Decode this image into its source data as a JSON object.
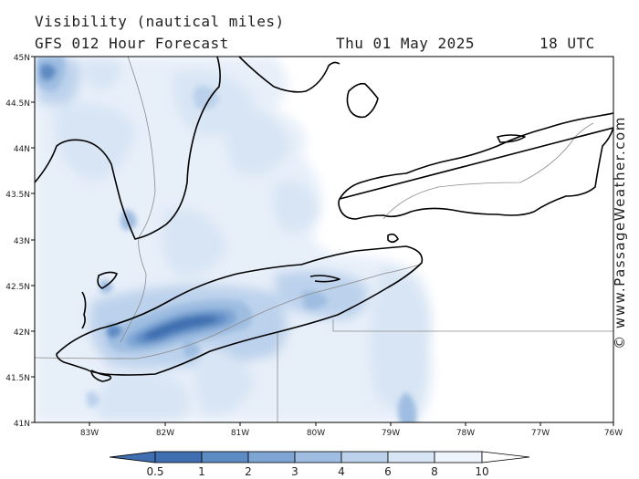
{
  "header": {
    "title": "Visibility (nautical miles)",
    "subtitle": "GFS 012 Hour Forecast",
    "date": "Thu 01 May 2025",
    "time": "18 UTC"
  },
  "map": {
    "lat_labels": [
      "45N",
      "44.5N",
      "44N",
      "43.5N",
      "43N",
      "42.5N",
      "42N",
      "41.5N",
      "41N"
    ],
    "lon_labels": [
      "83W",
      "82W",
      "81W",
      "80W",
      "79W",
      "78W",
      "77W",
      "76W"
    ]
  },
  "colorbar": {
    "labels": [
      "0.5",
      "1",
      "2",
      "3",
      "4",
      "6",
      "8",
      "10"
    ],
    "colors": [
      "#3f6fb0",
      "#5d8bc4",
      "#7ea5d4",
      "#9ebde1",
      "#bcd2ec",
      "#d8e5f4",
      "#eef4fb",
      "#ffffff"
    ]
  },
  "credit": "© www.PassageWeather.com"
}
